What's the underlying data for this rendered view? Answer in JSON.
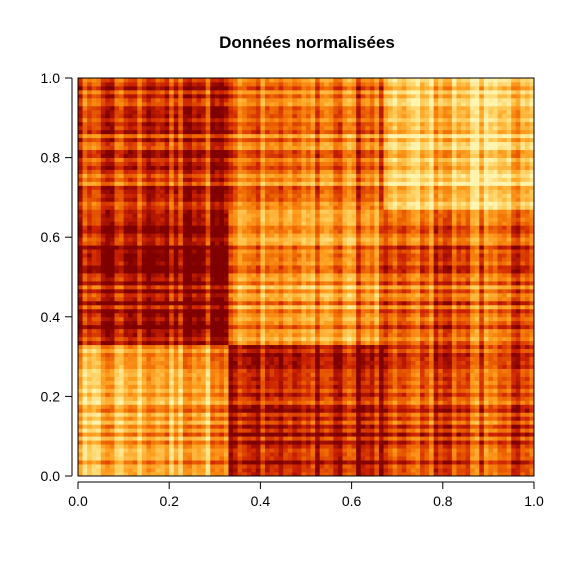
{
  "chart_data": {
    "type": "heatmap",
    "title": "Données normalisées",
    "xlabel": "",
    "ylabel": "",
    "xlim": [
      0,
      1
    ],
    "ylim": [
      0,
      1
    ],
    "x_ticks": [
      "0.0",
      "0.2",
      "0.4",
      "0.6",
      "0.8",
      "1.0"
    ],
    "y_ticks": [
      "0.0",
      "0.2",
      "0.4",
      "0.6",
      "0.8",
      "1.0"
    ],
    "grid": false,
    "legend": "none",
    "colormap": [
      "#800000",
      "#cc2200",
      "#ee6600",
      "#ffa020",
      "#ffd060",
      "#fff5b0"
    ],
    "cell_count": 100,
    "block_boundaries": [
      0,
      0.3333,
      0.6667,
      1
    ],
    "block_levels": [
      [
        0.62,
        0.1,
        0.3
      ],
      [
        0.12,
        0.52,
        0.4
      ],
      [
        0.28,
        0.42,
        0.8
      ]
    ]
  }
}
